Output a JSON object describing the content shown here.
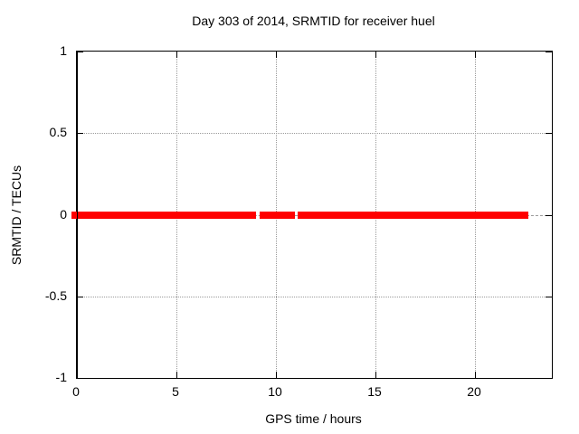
{
  "chart_data": {
    "type": "line",
    "title": "Day 303 of 2014, SRMTID for receiver huel",
    "xlabel": "GPS time / hours",
    "ylabel": "SRMTID / TECUs",
    "xlim": [
      0,
      23.86
    ],
    "ylim": [
      -1,
      1
    ],
    "xticks": [
      0,
      5,
      10,
      15,
      20
    ],
    "xtick_labels": [
      "0",
      "5",
      "10",
      "15",
      "20"
    ],
    "yticks": [
      -1,
      -0.5,
      0,
      0.5,
      1
    ],
    "ytick_labels": [
      "-1",
      "-0.5",
      "0",
      "0.5",
      "1"
    ],
    "grid": true,
    "legend": "none",
    "series": [
      {
        "name": "SRMTID",
        "y_value": 0,
        "color": "#ff0000",
        "segments_hours": [
          [
            0,
            8.98
          ],
          [
            9.17,
            10.95
          ],
          [
            11.09,
            22.7
          ]
        ]
      }
    ],
    "colors": {
      "line": "#ff0000",
      "grid": "#9a9a9a",
      "axis": "#000000",
      "background": "#ffffff",
      "text": "#000000"
    }
  }
}
